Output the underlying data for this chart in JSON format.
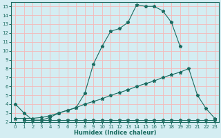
{
  "xlabel": "Humidex (Indice chaleur)",
  "xlim": [
    -0.5,
    23.5
  ],
  "ylim": [
    2,
    15.5
  ],
  "xticks": [
    0,
    1,
    2,
    3,
    4,
    5,
    6,
    7,
    8,
    9,
    10,
    11,
    12,
    13,
    14,
    15,
    16,
    17,
    18,
    19,
    20,
    21,
    22,
    23
  ],
  "yticks": [
    2,
    3,
    4,
    5,
    6,
    7,
    8,
    9,
    10,
    11,
    12,
    13,
    14,
    15
  ],
  "bg_color": "#d4edf2",
  "line_color": "#1a6b60",
  "grid_color": "#f5b8b8",
  "line1_x": [
    0,
    1,
    2,
    3,
    4,
    5,
    6,
    7,
    8,
    9,
    10,
    11,
    12,
    13,
    14,
    15,
    16,
    17,
    18,
    19
  ],
  "line1_y": [
    4.0,
    3.0,
    2.2,
    2.2,
    2.5,
    3.0,
    3.3,
    3.6,
    5.2,
    8.5,
    10.5,
    12.2,
    12.5,
    13.2,
    15.2,
    15.0,
    15.0,
    14.5,
    13.2,
    10.5
  ],
  "line2_x": [
    0,
    1,
    2,
    3,
    4,
    5,
    6,
    7,
    8,
    9,
    10,
    11,
    12,
    13,
    14,
    15,
    16,
    17,
    18,
    19,
    20,
    21,
    22,
    23
  ],
  "line2_y": [
    2.4,
    2.4,
    2.4,
    2.5,
    2.7,
    3.0,
    3.3,
    3.6,
    4.0,
    4.3,
    4.6,
    5.0,
    5.3,
    5.6,
    6.0,
    6.3,
    6.6,
    7.0,
    7.3,
    7.6,
    8.0,
    5.0,
    3.5,
    2.4
  ],
  "line3_x": [
    1,
    2,
    3,
    4,
    5,
    6,
    7,
    8,
    9,
    10,
    11,
    12,
    13,
    14,
    15,
    16,
    17,
    18,
    19,
    20,
    21,
    22,
    23
  ],
  "line3_y": [
    2.2,
    2.2,
    2.2,
    2.2,
    2.2,
    2.2,
    2.2,
    2.2,
    2.2,
    2.2,
    2.2,
    2.2,
    2.2,
    2.2,
    2.2,
    2.2,
    2.2,
    2.2,
    2.2,
    2.2,
    2.2,
    2.2,
    2.2
  ]
}
